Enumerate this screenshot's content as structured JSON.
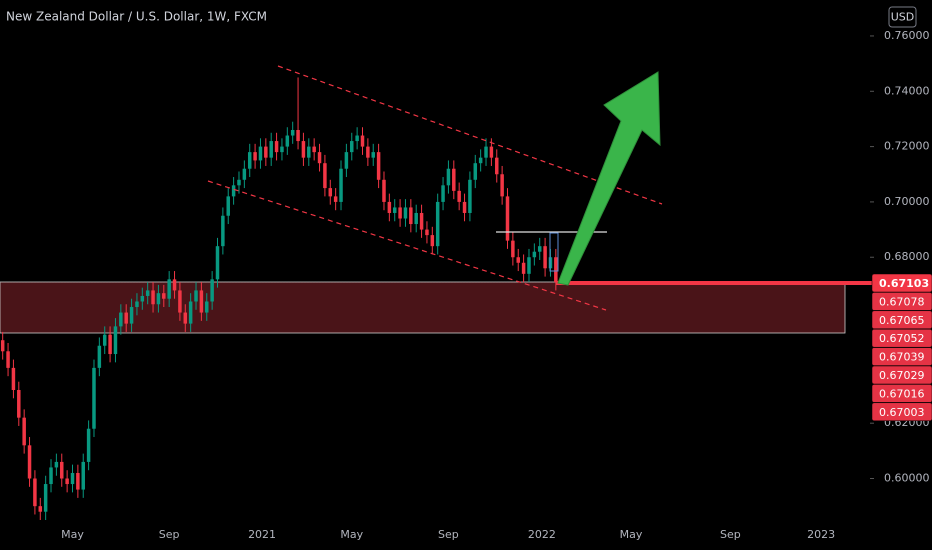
{
  "chart_data": {
    "type": "candlestick",
    "title": "New Zealand Dollar / U.S. Dollar, 1W, FXCM",
    "currency": "USD",
    "up_color": "#089981",
    "down_color": "#f23645",
    "xlim": [
      -0.5,
      161.5
    ],
    "xticks": [
      {
        "value": 13,
        "label": "May"
      },
      {
        "value": 31,
        "label": "Sep"
      },
      {
        "value": 48.3,
        "label": "2021"
      },
      {
        "value": 65,
        "label": "May"
      },
      {
        "value": 83,
        "label": "Sep"
      },
      {
        "value": 100.4,
        "label": "2022"
      },
      {
        "value": 117,
        "label": "May"
      },
      {
        "value": 135.5,
        "label": "Sep"
      },
      {
        "value": 152.4,
        "label": "2023"
      }
    ],
    "ylim": [
      0.585,
      0.773
    ],
    "yticks": [
      {
        "value": 0.6,
        "label": "0.60000"
      },
      {
        "value": 0.62,
        "label": "0.62000"
      },
      {
        "value": 0.68,
        "label": "0.68000"
      },
      {
        "value": 0.7,
        "label": "0.70000"
      },
      {
        "value": 0.72,
        "label": "0.72000"
      },
      {
        "value": 0.74,
        "label": "0.74000"
      },
      {
        "value": 0.76,
        "label": "0.76000"
      }
    ],
    "price_labels": [
      "0.67103",
      "0.67078",
      "0.67065",
      "0.67052",
      "0.67039",
      "0.67029",
      "0.67016",
      "0.67003"
    ],
    "candles": [
      [
        0.65,
        0.653,
        0.643,
        0.646
      ],
      [
        0.646,
        0.649,
        0.637,
        0.64
      ],
      [
        0.64,
        0.643,
        0.629,
        0.632
      ],
      [
        0.632,
        0.635,
        0.619,
        0.622
      ],
      [
        0.622,
        0.625,
        0.609,
        0.612
      ],
      [
        0.612,
        0.615,
        0.597,
        0.6
      ],
      [
        0.6,
        0.603,
        0.587,
        0.59
      ],
      [
        0.59,
        0.593,
        0.585,
        0.588
      ],
      [
        0.588,
        0.601,
        0.585,
        0.598
      ],
      [
        0.598,
        0.607,
        0.595,
        0.604
      ],
      [
        0.604,
        0.609,
        0.601,
        0.606
      ],
      [
        0.606,
        0.609,
        0.597,
        0.6
      ],
      [
        0.6,
        0.603,
        0.595,
        0.598
      ],
      [
        0.598,
        0.605,
        0.595,
        0.602
      ],
      [
        0.602,
        0.605,
        0.593,
        0.596
      ],
      [
        0.596,
        0.609,
        0.593,
        0.606
      ],
      [
        0.606,
        0.621,
        0.603,
        0.618
      ],
      [
        0.618,
        0.643,
        0.615,
        0.64
      ],
      [
        0.64,
        0.651,
        0.637,
        0.648
      ],
      [
        0.648,
        0.655,
        0.645,
        0.652
      ],
      [
        0.652,
        0.655,
        0.642,
        0.645
      ],
      [
        0.645,
        0.658,
        0.642,
        0.655
      ],
      [
        0.655,
        0.663,
        0.652,
        0.66
      ],
      [
        0.66,
        0.663,
        0.653,
        0.656
      ],
      [
        0.656,
        0.665,
        0.653,
        0.662
      ],
      [
        0.662,
        0.667,
        0.659,
        0.664
      ],
      [
        0.664,
        0.669,
        0.661,
        0.666
      ],
      [
        0.666,
        0.671,
        0.663,
        0.668
      ],
      [
        0.668,
        0.671,
        0.66,
        0.663
      ],
      [
        0.663,
        0.67,
        0.66,
        0.667
      ],
      [
        0.667,
        0.67,
        0.662,
        0.665
      ],
      [
        0.665,
        0.675,
        0.662,
        0.672
      ],
      [
        0.672,
        0.675,
        0.665,
        0.668
      ],
      [
        0.668,
        0.671,
        0.657,
        0.66
      ],
      [
        0.66,
        0.663,
        0.653,
        0.656
      ],
      [
        0.656,
        0.667,
        0.653,
        0.664
      ],
      [
        0.664,
        0.671,
        0.661,
        0.668
      ],
      [
        0.668,
        0.671,
        0.657,
        0.66
      ],
      [
        0.66,
        0.667,
        0.657,
        0.664
      ],
      [
        0.664,
        0.675,
        0.661,
        0.672
      ],
      [
        0.672,
        0.687,
        0.669,
        0.684
      ],
      [
        0.684,
        0.698,
        0.681,
        0.695
      ],
      [
        0.695,
        0.705,
        0.692,
        0.702
      ],
      [
        0.702,
        0.709,
        0.699,
        0.706
      ],
      [
        0.706,
        0.711,
        0.703,
        0.708
      ],
      [
        0.708,
        0.715,
        0.705,
        0.712
      ],
      [
        0.712,
        0.721,
        0.709,
        0.718
      ],
      [
        0.718,
        0.721,
        0.712,
        0.715
      ],
      [
        0.715,
        0.723,
        0.712,
        0.72
      ],
      [
        0.72,
        0.723,
        0.713,
        0.716
      ],
      [
        0.716,
        0.725,
        0.713,
        0.722
      ],
      [
        0.722,
        0.725,
        0.715,
        0.718
      ],
      [
        0.718,
        0.723,
        0.715,
        0.72
      ],
      [
        0.72,
        0.727,
        0.717,
        0.724
      ],
      [
        0.724,
        0.729,
        0.721,
        0.726
      ],
      [
        0.726,
        0.745,
        0.719,
        0.722
      ],
      [
        0.722,
        0.725,
        0.713,
        0.716
      ],
      [
        0.716,
        0.723,
        0.713,
        0.72
      ],
      [
        0.72,
        0.723,
        0.715,
        0.718
      ],
      [
        0.718,
        0.721,
        0.711,
        0.714
      ],
      [
        0.714,
        0.717,
        0.702,
        0.705
      ],
      [
        0.705,
        0.708,
        0.699,
        0.702
      ],
      [
        0.702,
        0.705,
        0.697,
        0.7
      ],
      [
        0.7,
        0.715,
        0.697,
        0.712
      ],
      [
        0.712,
        0.721,
        0.709,
        0.718
      ],
      [
        0.718,
        0.725,
        0.715,
        0.722
      ],
      [
        0.722,
        0.727,
        0.719,
        0.724
      ],
      [
        0.724,
        0.727,
        0.717,
        0.72
      ],
      [
        0.72,
        0.723,
        0.713,
        0.716
      ],
      [
        0.716,
        0.721,
        0.713,
        0.718
      ],
      [
        0.718,
        0.721,
        0.705,
        0.708
      ],
      [
        0.708,
        0.711,
        0.697,
        0.7
      ],
      [
        0.7,
        0.703,
        0.693,
        0.696
      ],
      [
        0.696,
        0.701,
        0.693,
        0.698
      ],
      [
        0.698,
        0.701,
        0.691,
        0.694
      ],
      [
        0.694,
        0.701,
        0.691,
        0.698
      ],
      [
        0.698,
        0.701,
        0.689,
        0.692
      ],
      [
        0.692,
        0.699,
        0.689,
        0.696
      ],
      [
        0.696,
        0.699,
        0.687,
        0.69
      ],
      [
        0.69,
        0.693,
        0.685,
        0.688
      ],
      [
        0.688,
        0.691,
        0.681,
        0.684
      ],
      [
        0.684,
        0.703,
        0.681,
        0.7
      ],
      [
        0.7,
        0.709,
        0.697,
        0.706
      ],
      [
        0.706,
        0.715,
        0.703,
        0.712
      ],
      [
        0.712,
        0.715,
        0.701,
        0.704
      ],
      [
        0.704,
        0.707,
        0.697,
        0.7
      ],
      [
        0.7,
        0.703,
        0.693,
        0.696
      ],
      [
        0.696,
        0.711,
        0.693,
        0.708
      ],
      [
        0.708,
        0.717,
        0.705,
        0.714
      ],
      [
        0.714,
        0.719,
        0.711,
        0.716
      ],
      [
        0.716,
        0.723,
        0.713,
        0.72
      ],
      [
        0.72,
        0.723,
        0.713,
        0.716
      ],
      [
        0.716,
        0.719,
        0.707,
        0.71
      ],
      [
        0.71,
        0.713,
        0.699,
        0.702
      ],
      [
        0.702,
        0.705,
        0.683,
        0.686
      ],
      [
        0.686,
        0.689,
        0.677,
        0.68
      ],
      [
        0.68,
        0.683,
        0.675,
        0.678
      ],
      [
        0.678,
        0.681,
        0.671,
        0.674
      ],
      [
        0.674,
        0.683,
        0.671,
        0.68
      ],
      [
        0.68,
        0.685,
        0.677,
        0.682
      ],
      [
        0.682,
        0.687,
        0.679,
        0.684
      ],
      [
        0.684,
        0.687,
        0.673,
        0.676
      ],
      [
        0.676,
        0.683,
        0.673,
        0.68
      ],
      [
        0.68,
        0.683,
        0.668,
        0.671
      ]
    ]
  }
}
